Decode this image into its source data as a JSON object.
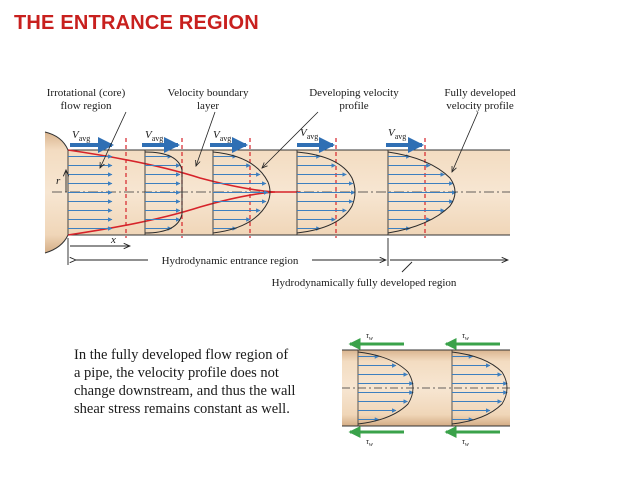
{
  "title": "THE ENTRANCE REGION",
  "labels": {
    "core": [
      "Irrotational (core)",
      "flow region"
    ],
    "boundary": [
      "Velocity boundary",
      "layer"
    ],
    "developing": [
      "Developing velocity",
      "profile"
    ],
    "fully": [
      "Fully developed",
      "velocity profile"
    ],
    "v_main": "V",
    "v_sub": "avg",
    "r": "r",
    "x": "x",
    "entrance_region": "Hydrodynamic entrance region",
    "developed_region": "Hydrodynamically fully developed region",
    "tau": "τ",
    "tau_sub": "w"
  },
  "caption": [
    "In the fully developed flow region of",
    "a pipe, the velocity profile does not",
    "change downstream, and thus the wall",
    "shear stress remains constant as well."
  ],
  "colors": {
    "title": "#c8201e",
    "pipe": "#eccfae",
    "profile_arrow": "#3d7fbf",
    "boundary_line": "#d6232a",
    "dash_red": "#d6232a",
    "shear_arrow": "#3aa24a"
  }
}
